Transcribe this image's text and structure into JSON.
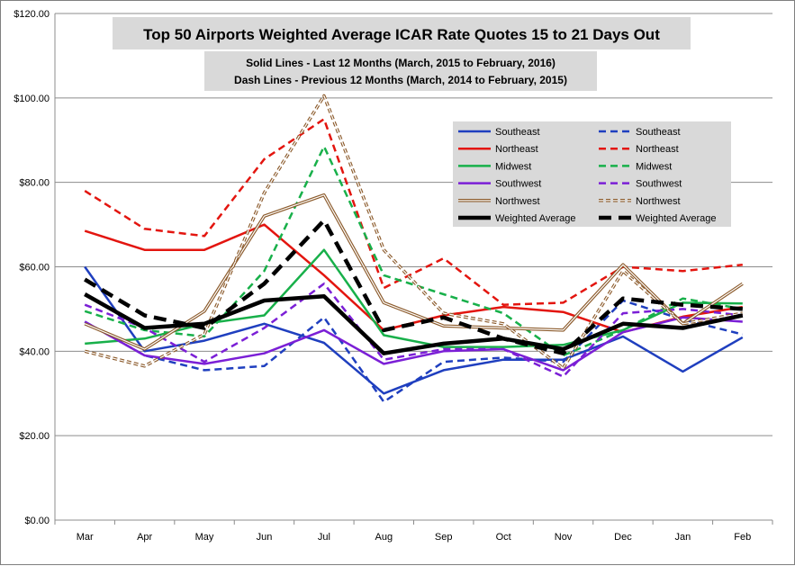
{
  "chart_data": {
    "type": "line",
    "title": "Top 50 Airports Weighted Average ICAR Rate Quotes 15 to 21 Days Out",
    "subtitle_lines": [
      "Solid Lines - Last 12 Months  (March, 2015 to February, 2016)",
      "Dash Lines - Previous 12 Months (March, 2014 to February, 2015)"
    ],
    "xlabel": "",
    "ylabel": "",
    "categories": [
      "Mar",
      "Apr",
      "May",
      "Jun",
      "Jul",
      "Aug",
      "Sep",
      "Oct",
      "Nov",
      "Dec",
      "Jan",
      "Feb"
    ],
    "ylim": [
      0,
      120
    ],
    "yticks": [
      0,
      20,
      40,
      60,
      80,
      100,
      120
    ],
    "ytick_labels": [
      "$0.00",
      "$20.00",
      "$40.00",
      "$60.00",
      "$80.00",
      "$100.00",
      "$120.00"
    ],
    "grid": true,
    "legend_position": "top-right",
    "series": [
      {
        "name": "Southeast",
        "style": "solid",
        "color": "#1f3fbf",
        "values": [
          60.0,
          40.0,
          42.5,
          46.5,
          42.0,
          30.0,
          35.5,
          38.0,
          38.0,
          43.5,
          35.2,
          43.3
        ]
      },
      {
        "name": "Southeast",
        "style": "dash",
        "color": "#1f3fbf",
        "values": [
          47.0,
          39.0,
          35.5,
          36.5,
          48.0,
          28.0,
          37.5,
          38.5,
          37.5,
          52.0,
          47.5,
          44.0
        ]
      },
      {
        "name": "Northeast",
        "style": "solid",
        "color": "#e3150f",
        "values": [
          68.5,
          64.0,
          64.0,
          70.0,
          58.0,
          45.0,
          48.5,
          50.5,
          49.3,
          44.5,
          48.2,
          50.5
        ]
      },
      {
        "name": "Northeast",
        "style": "dash",
        "color": "#e3150f",
        "values": [
          78.0,
          69.0,
          67.3,
          85.5,
          95.0,
          55.0,
          62.0,
          51.0,
          51.5,
          60.0,
          59.0,
          60.5
        ]
      },
      {
        "name": "Midwest",
        "style": "solid",
        "color": "#18b04a",
        "values": [
          41.8,
          43.0,
          46.5,
          48.5,
          64.0,
          43.8,
          41.0,
          41.0,
          41.5,
          45.0,
          51.5,
          51.3
        ]
      },
      {
        "name": "Midwest",
        "style": "dash",
        "color": "#18b04a",
        "values": [
          49.5,
          45.0,
          43.5,
          59.0,
          88.5,
          58.0,
          53.5,
          49.0,
          39.0,
          45.0,
          52.5,
          50.0
        ]
      },
      {
        "name": "Southwest",
        "style": "solid",
        "color": "#7b1fd6",
        "values": [
          47.0,
          39.0,
          37.0,
          39.5,
          45.0,
          37.0,
          40.0,
          40.5,
          35.5,
          44.5,
          48.0,
          47.0
        ]
      },
      {
        "name": "Southwest",
        "style": "dash",
        "color": "#7b1fd6",
        "values": [
          51.0,
          45.5,
          37.5,
          45.5,
          56.0,
          38.0,
          40.5,
          40.5,
          34.0,
          49.0,
          50.0,
          48.5
        ]
      },
      {
        "name": "Northwest",
        "style": "solid",
        "color": "#8b5a2b",
        "values": [
          46.5,
          40.5,
          49.5,
          72.0,
          77.0,
          51.5,
          46.0,
          45.5,
          45.0,
          60.5,
          46.5,
          56.0
        ]
      },
      {
        "name": "Northwest",
        "style": "dash",
        "color": "#8b5a2b",
        "values": [
          40.0,
          36.5,
          44.0,
          77.5,
          100.5,
          64.0,
          49.0,
          46.5,
          36.0,
          59.0,
          46.5,
          49.0
        ]
      },
      {
        "name": "Weighted Average",
        "style": "solid",
        "color": "#000000",
        "values": [
          53.5,
          45.5,
          46.5,
          52.0,
          53.0,
          39.5,
          41.8,
          43.0,
          40.5,
          46.5,
          45.5,
          48.5
        ]
      },
      {
        "name": "Weighted Average",
        "style": "dash",
        "color": "#000000",
        "values": [
          57.0,
          48.5,
          45.5,
          56.0,
          71.0,
          45.0,
          48.0,
          43.0,
          39.5,
          52.5,
          51.0,
          50.0
        ]
      }
    ]
  }
}
